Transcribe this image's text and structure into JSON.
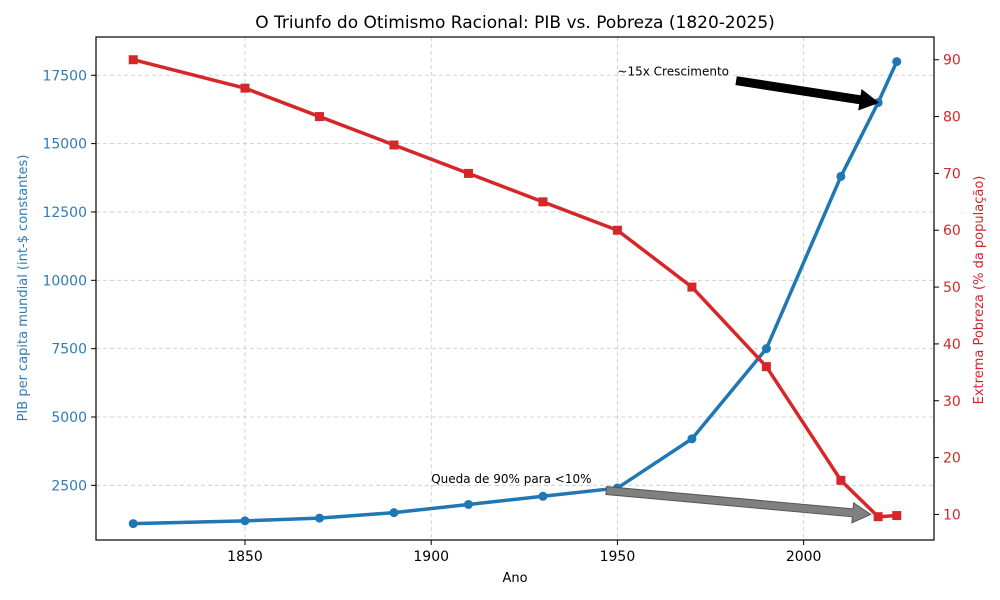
{
  "chart_data": {
    "type": "line",
    "title": "O Triunfo do Otimismo Racional: PIB vs. Pobreza (1820-2025)",
    "xlabel": "Ano",
    "ylabel_left": "PIB per capita mundial (int-$ constantes)",
    "ylabel_right": "Extrema Pobreza (% da população)",
    "x": [
      1820,
      1850,
      1870,
      1890,
      1910,
      1930,
      1950,
      1970,
      1990,
      2010,
      2020,
      2025
    ],
    "xlim": [
      1810,
      2035
    ],
    "x_ticks": [
      1850,
      1900,
      1950,
      2000
    ],
    "ylim_left": [
      500,
      18900
    ],
    "y_ticks_left": [
      2500,
      5000,
      7500,
      10000,
      12500,
      15000,
      17500
    ],
    "ylim_right": [
      5.5,
      94
    ],
    "y_ticks_right": [
      10,
      20,
      30,
      40,
      50,
      60,
      70,
      80,
      90
    ],
    "grid": true,
    "series": [
      {
        "name": "PIB per capita",
        "axis": "left",
        "color": "#1f77b4",
        "marker": "circle",
        "values": [
          1100,
          1200,
          1300,
          1500,
          1800,
          2100,
          2400,
          4200,
          7500,
          13800,
          16500,
          18000
        ]
      },
      {
        "name": "Extrema Pobreza",
        "axis": "right",
        "color": "#d62728",
        "marker": "square",
        "values": [
          90,
          85,
          80,
          75,
          70,
          65,
          60,
          50,
          36,
          16,
          9.6,
          9.8
        ]
      }
    ],
    "annotations": [
      {
        "text": "~15x Crescimento",
        "axis": "left",
        "text_at": [
          1950,
          17500
        ],
        "arrow_from": [
          1982,
          17300
        ],
        "arrow_to": [
          2020,
          16500
        ],
        "arrow_color": "#000000"
      },
      {
        "text": "Queda de 90% para <10%",
        "axis": "right",
        "text_at": [
          1900,
          15.5
        ],
        "arrow_from": [
          1947,
          14.2
        ],
        "arrow_to": [
          2018,
          10
        ],
        "arrow_color": "#808080"
      }
    ]
  }
}
